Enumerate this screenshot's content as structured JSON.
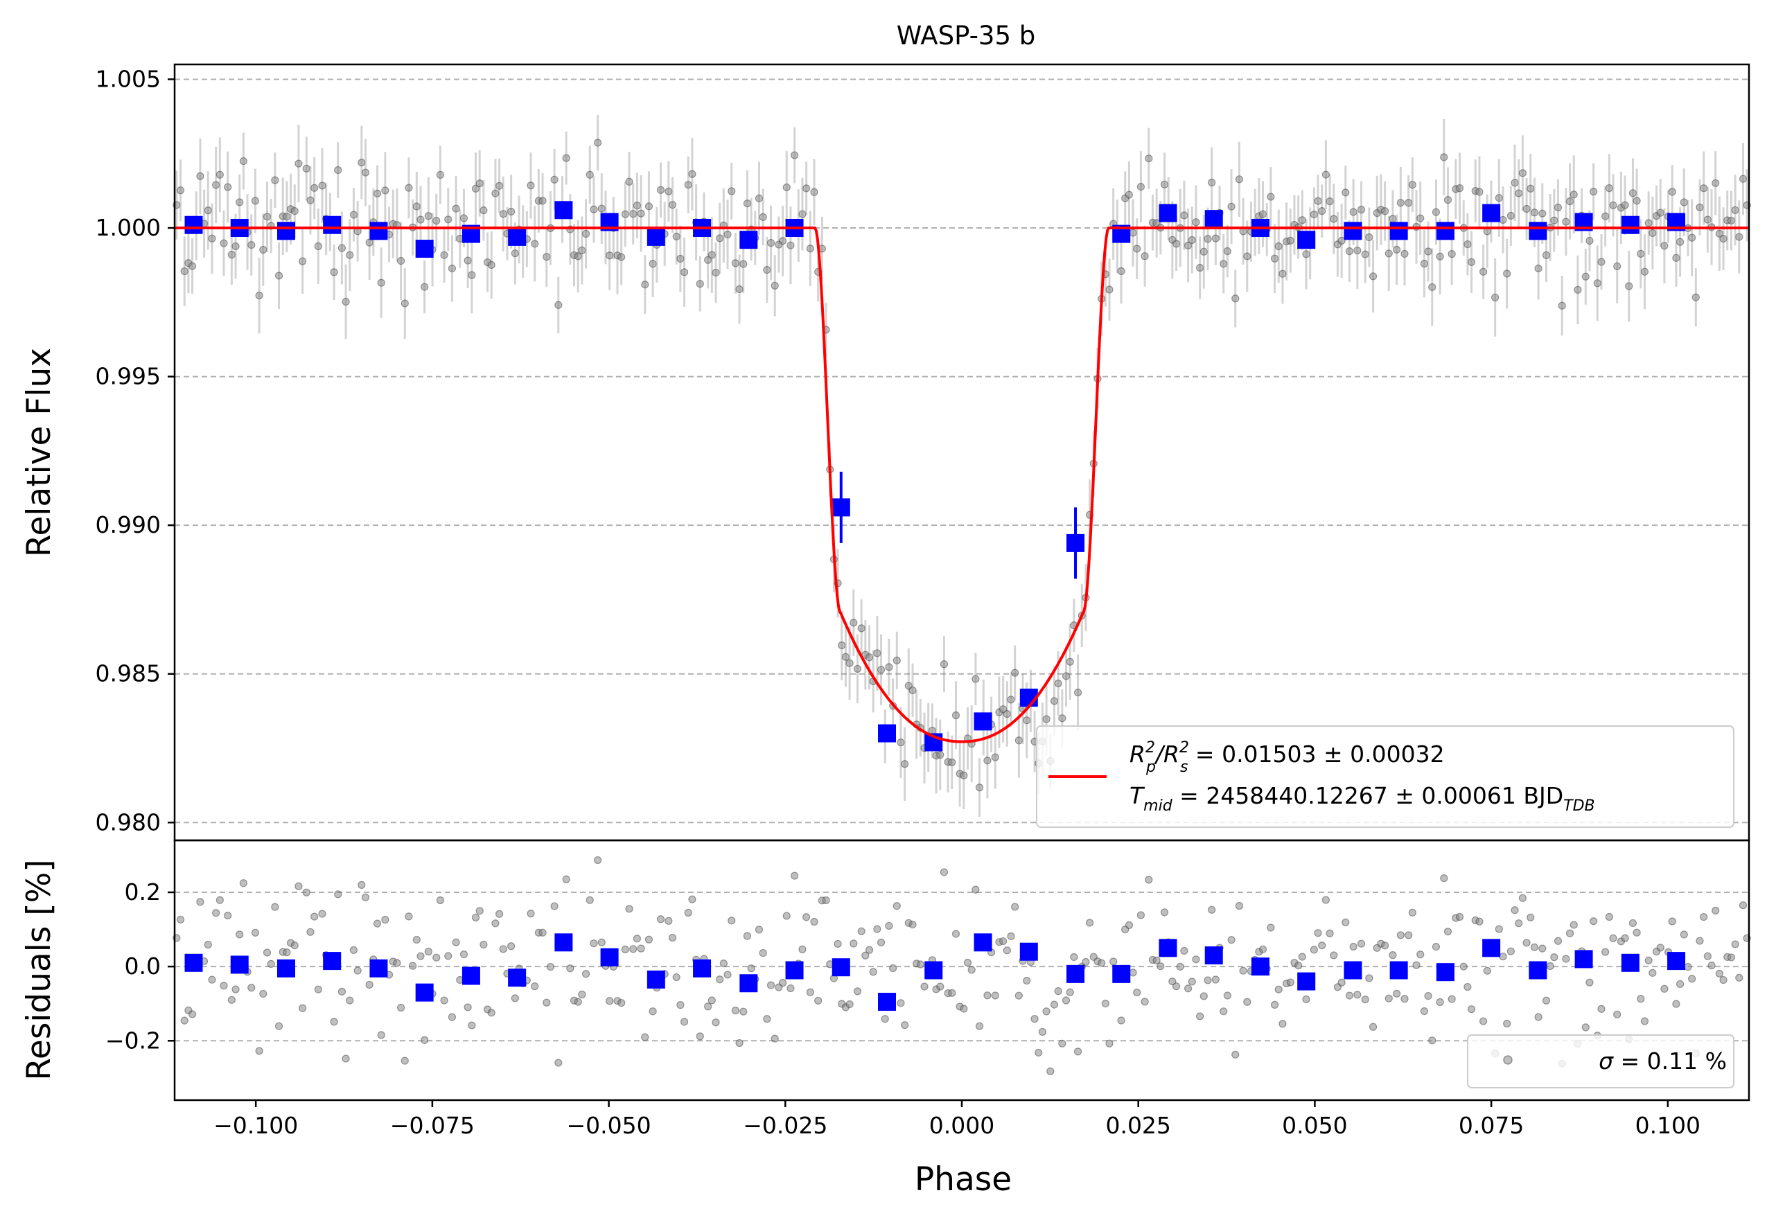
{
  "chart_data": {
    "type": "scatter",
    "title": "WASP-35 b",
    "colors": {
      "model": "#ff0000",
      "binned": "#0000ff",
      "raw": "#808080",
      "grid": "#b0b0b0"
    },
    "top_panel": {
      "ylabel": "Relative Flux",
      "ylim": [
        0.9794,
        1.0055
      ],
      "xlim": [
        -0.1115,
        0.1115
      ],
      "yticks": [
        0.98,
        0.985,
        0.99,
        0.995,
        1.0,
        1.005
      ],
      "ytick_labels": [
        "0.980",
        "0.985",
        "0.990",
        "0.995",
        "1.000",
        "1.005"
      ],
      "grid": "horizontal dashed",
      "transit_model": {
        "depth": 0.01503,
        "t_mid_phase": 0.0,
        "contact_1": -0.0208,
        "contact_2": -0.0172,
        "contact_3": 0.0172,
        "contact_4": 0.0208,
        "min_flux": 0.98272
      },
      "binned_points": {
        "x": [
          -0.1088,
          -0.1023,
          -0.0957,
          -0.0892,
          -0.0826,
          -0.0761,
          -0.0695,
          -0.063,
          -0.0564,
          -0.0499,
          -0.0433,
          -0.0368,
          -0.0302,
          -0.0237,
          -0.0171,
          -0.0106,
          -0.004,
          0.003,
          0.0095,
          0.0161,
          0.0226,
          0.0292,
          0.0357,
          0.0423,
          0.0488,
          0.0554,
          0.0619,
          0.0685,
          0.075,
          0.0816,
          0.0881,
          0.0947,
          0.1012
        ],
        "y": [
          1.0001,
          1.0,
          0.9999,
          1.0001,
          0.9999,
          0.9993,
          0.9998,
          0.9997,
          1.0006,
          1.0002,
          0.9997,
          1.0,
          0.9996,
          1.0,
          0.9906,
          0.983,
          0.9827,
          0.9834,
          0.9842,
          0.9894,
          0.9998,
          1.0005,
          1.0003,
          1.0,
          0.9996,
          0.9999,
          0.9999,
          0.9999,
          1.0005,
          0.9999,
          1.0002,
          1.0001,
          1.0002
        ]
      },
      "raw_points": {
        "n": 400,
        "scatter_sigma": 0.0011,
        "errorbar": 0.0011
      },
      "legend": {
        "location": "lower right",
        "entries": [
          {
            "prefix": "R",
            "sub1": "p",
            "sup1": "2",
            "slash": "/R",
            "sub2": "s",
            "sup2": "2",
            "value": " = 0.01503 ± 0.00032"
          },
          {
            "prefix": "T",
            "sub1": "mid",
            "value": " = 2458440.12267 ± 0.00061 BJD",
            "sub2": "TDB"
          }
        ]
      }
    },
    "bottom_panel": {
      "ylabel": "Residuals [%]",
      "xlabel": "Phase",
      "ylim": [
        -0.36,
        0.34
      ],
      "yticks": [
        -0.2,
        0.0,
        0.2
      ],
      "ytick_labels": [
        "−0.2",
        "0.0",
        "0.2"
      ],
      "xticks": [
        -0.1,
        -0.075,
        -0.05,
        -0.025,
        0.0,
        0.025,
        0.05,
        0.075,
        0.1
      ],
      "xtick_labels": [
        "−0.100",
        "−0.075",
        "−0.050",
        "−0.025",
        "0.000",
        "0.025",
        "0.050",
        "0.075",
        "0.100"
      ],
      "binned_residuals": [
        0.01,
        0.005,
        -0.005,
        0.015,
        -0.005,
        -0.07,
        -0.025,
        -0.03,
        0.065,
        0.025,
        -0.035,
        -0.005,
        -0.045,
        -0.01,
        -0.002,
        -0.095,
        -0.01,
        0.065,
        0.04,
        -0.02,
        -0.02,
        0.05,
        0.03,
        0.0,
        -0.04,
        -0.01,
        -0.01,
        -0.015,
        0.05,
        -0.01,
        0.02,
        0.01,
        0.015
      ],
      "legend": {
        "location": "lower right",
        "symbol": "σ",
        "text": " = 0.11 %"
      }
    }
  }
}
